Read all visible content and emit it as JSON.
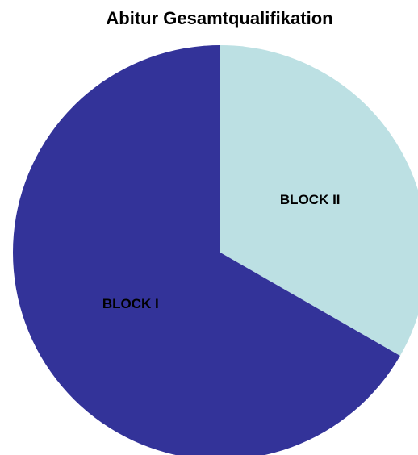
{
  "chart_data": {
    "type": "pie",
    "title": "Abitur Gesamtqualifikation",
    "categories": [
      "BLOCK II",
      "BLOCK I"
    ],
    "values": [
      33.3,
      66.7
    ],
    "colors": [
      "#bce0e3",
      "#333399"
    ]
  }
}
